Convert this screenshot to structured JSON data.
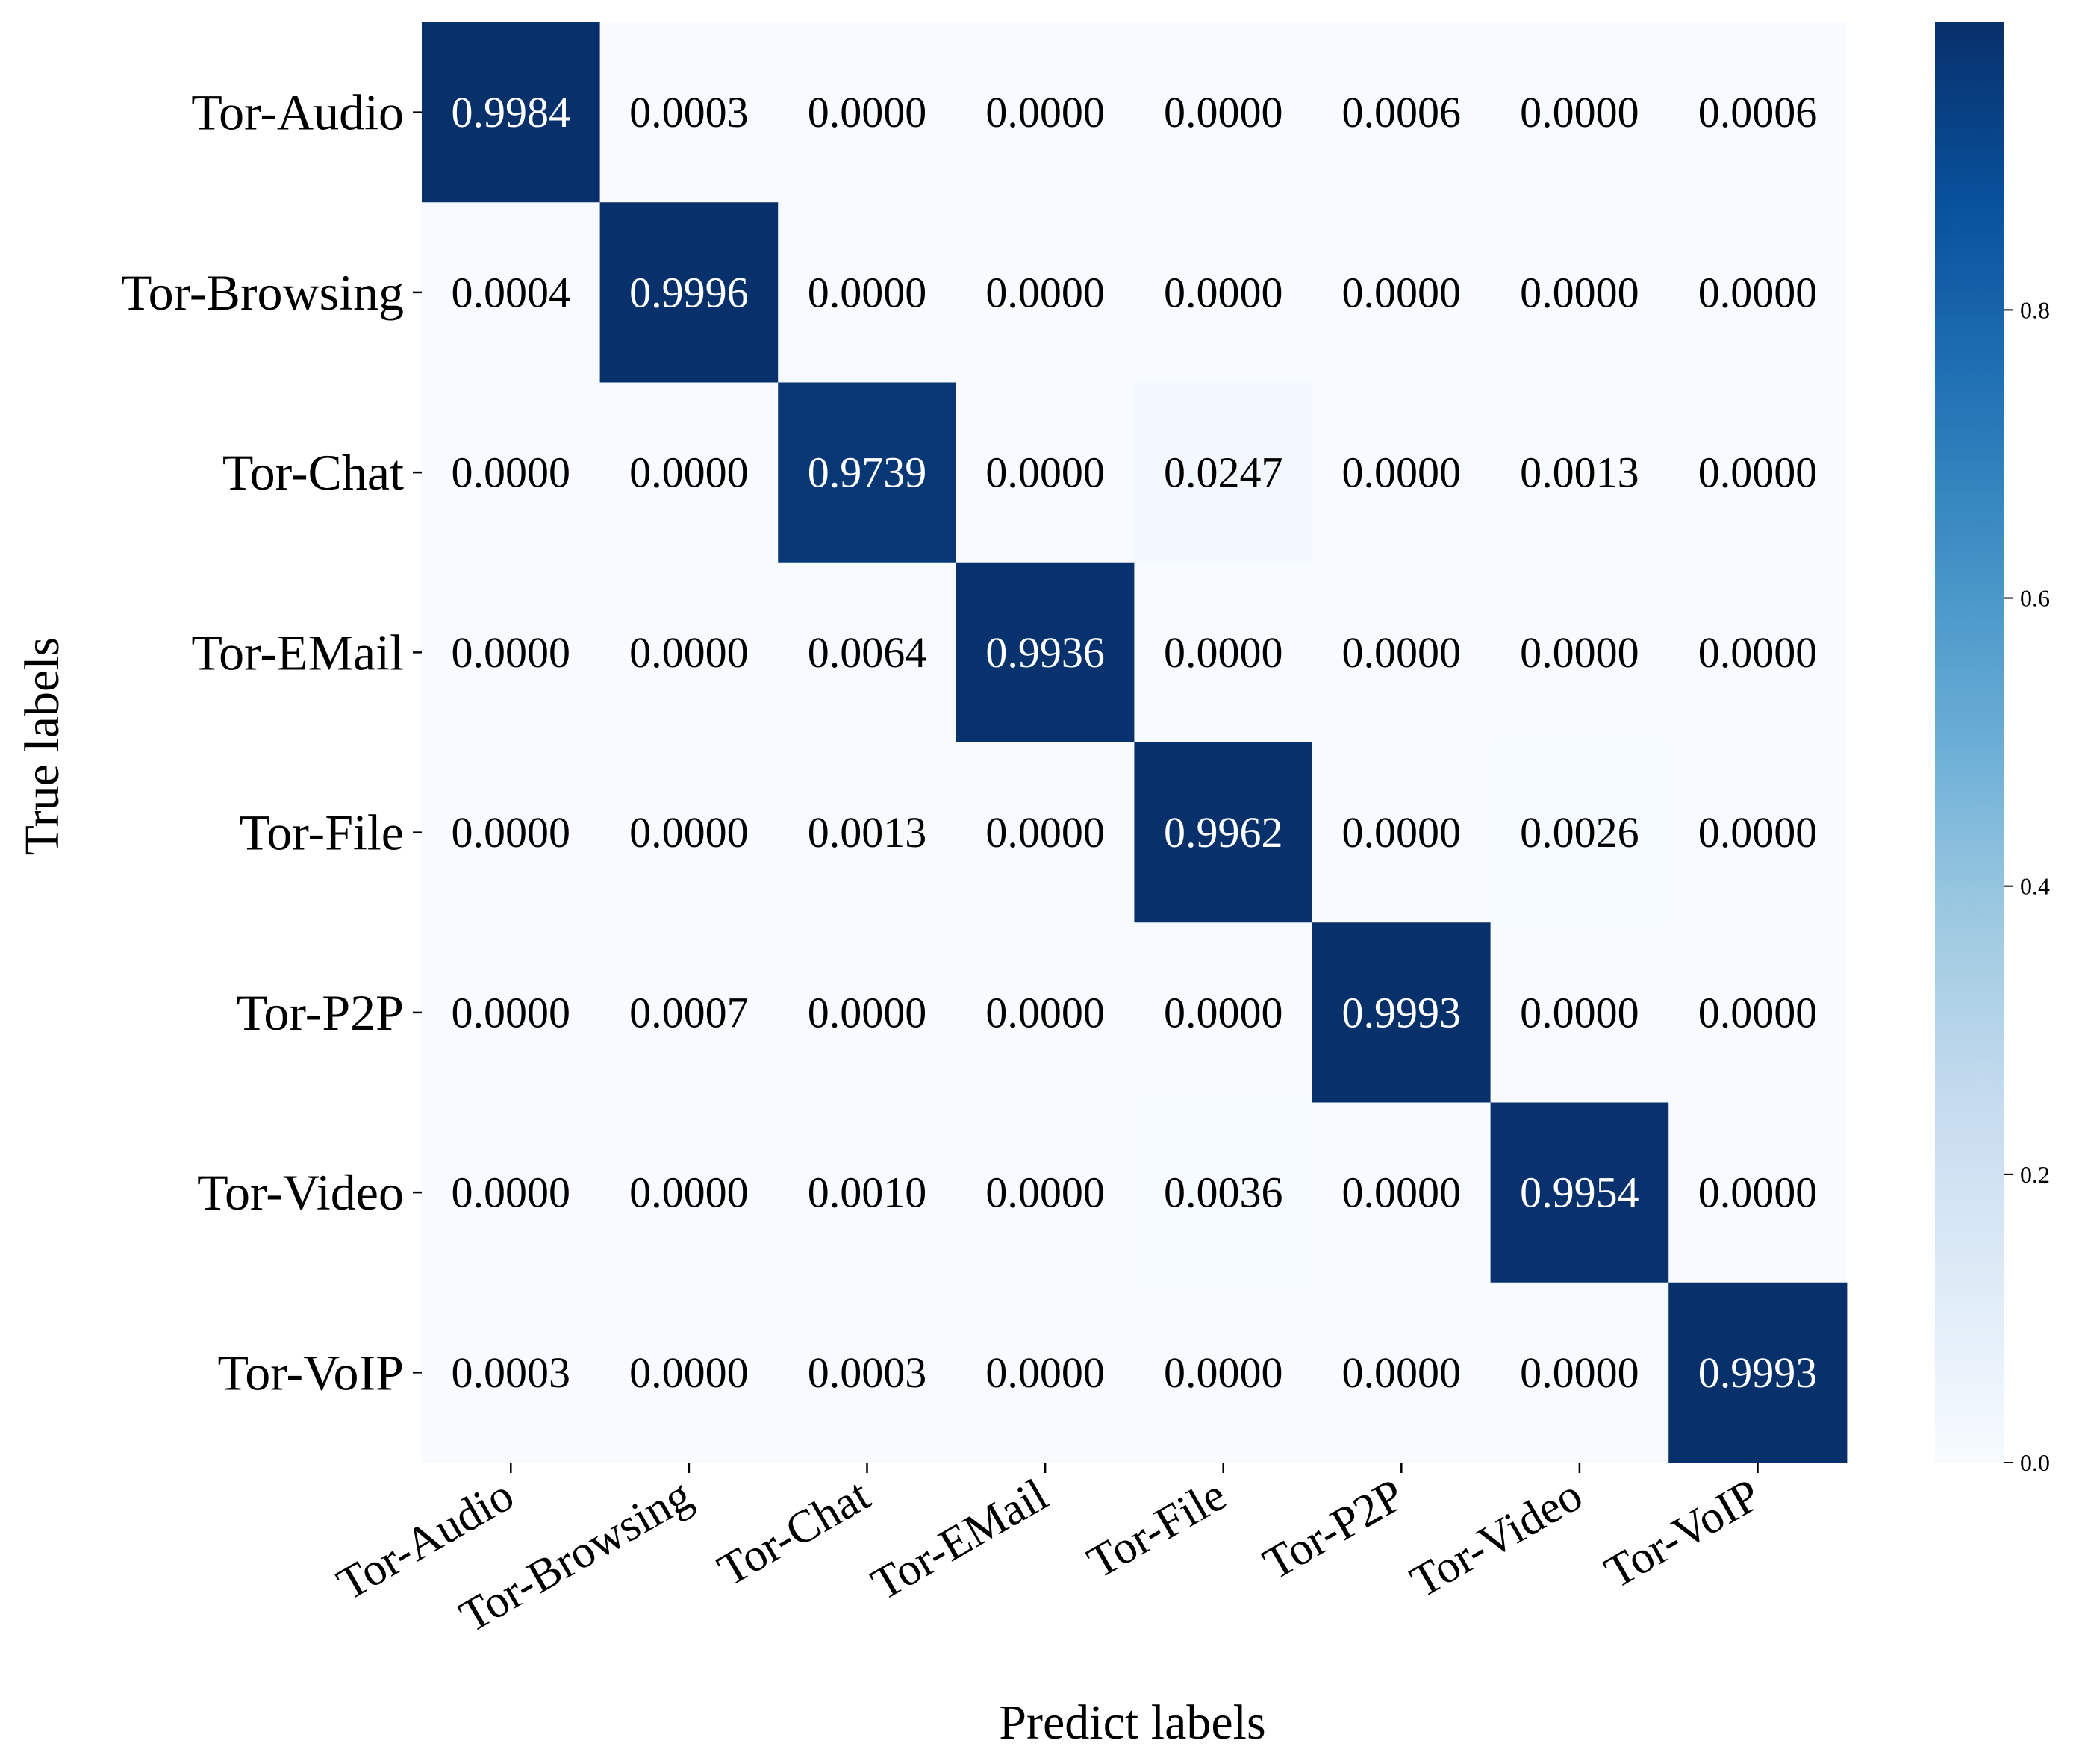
{
  "chart_data": {
    "type": "heatmap",
    "title": "",
    "xlabel": "Predict labels",
    "ylabel": "True labels",
    "x_categories": [
      "Tor-Audio",
      "Tor-Browsing",
      "Tor-Chat",
      "Tor-EMail",
      "Tor-File",
      "Tor-P2P",
      "Tor-Video",
      "Tor-VoIP"
    ],
    "y_categories": [
      "Tor-Audio",
      "Tor-Browsing",
      "Tor-Chat",
      "Tor-EMail",
      "Tor-File",
      "Tor-P2P",
      "Tor-Video",
      "Tor-VoIP"
    ],
    "values": [
      [
        0.9984,
        0.0003,
        0.0,
        0.0,
        0.0,
        0.0006,
        0.0,
        0.0006
      ],
      [
        0.0004,
        0.9996,
        0.0,
        0.0,
        0.0,
        0.0,
        0.0,
        0.0
      ],
      [
        0.0,
        0.0,
        0.9739,
        0.0,
        0.0247,
        0.0,
        0.0013,
        0.0
      ],
      [
        0.0,
        0.0,
        0.0064,
        0.9936,
        0.0,
        0.0,
        0.0,
        0.0
      ],
      [
        0.0,
        0.0,
        0.0013,
        0.0,
        0.9962,
        0.0,
        0.0026,
        0.0
      ],
      [
        0.0,
        0.0007,
        0.0,
        0.0,
        0.0,
        0.9993,
        0.0,
        0.0
      ],
      [
        0.0,
        0.0,
        0.001,
        0.0,
        0.0036,
        0.0,
        0.9954,
        0.0
      ],
      [
        0.0003,
        0.0,
        0.0003,
        0.0,
        0.0,
        0.0,
        0.0,
        0.9993
      ]
    ],
    "value_format_decimals": 4,
    "colormap": "Blues",
    "vmin": 0.0,
    "vmax": 0.9996,
    "colorbar_ticks": [
      0.0,
      0.2,
      0.4,
      0.6,
      0.8
    ],
    "colorbar_tick_labels": [
      "0.0",
      "0.2",
      "0.4",
      "0.6",
      "0.8"
    ],
    "x_tick_rotation_deg": 30,
    "grid": false
  },
  "colors": {
    "blues_stops": [
      "#f7fbff",
      "#deebf7",
      "#c6dbef",
      "#9ecae1",
      "#6baed6",
      "#4292c6",
      "#2171b5",
      "#08519c",
      "#08306b"
    ],
    "text_dark": "#000000",
    "text_light": "#ffffff"
  }
}
